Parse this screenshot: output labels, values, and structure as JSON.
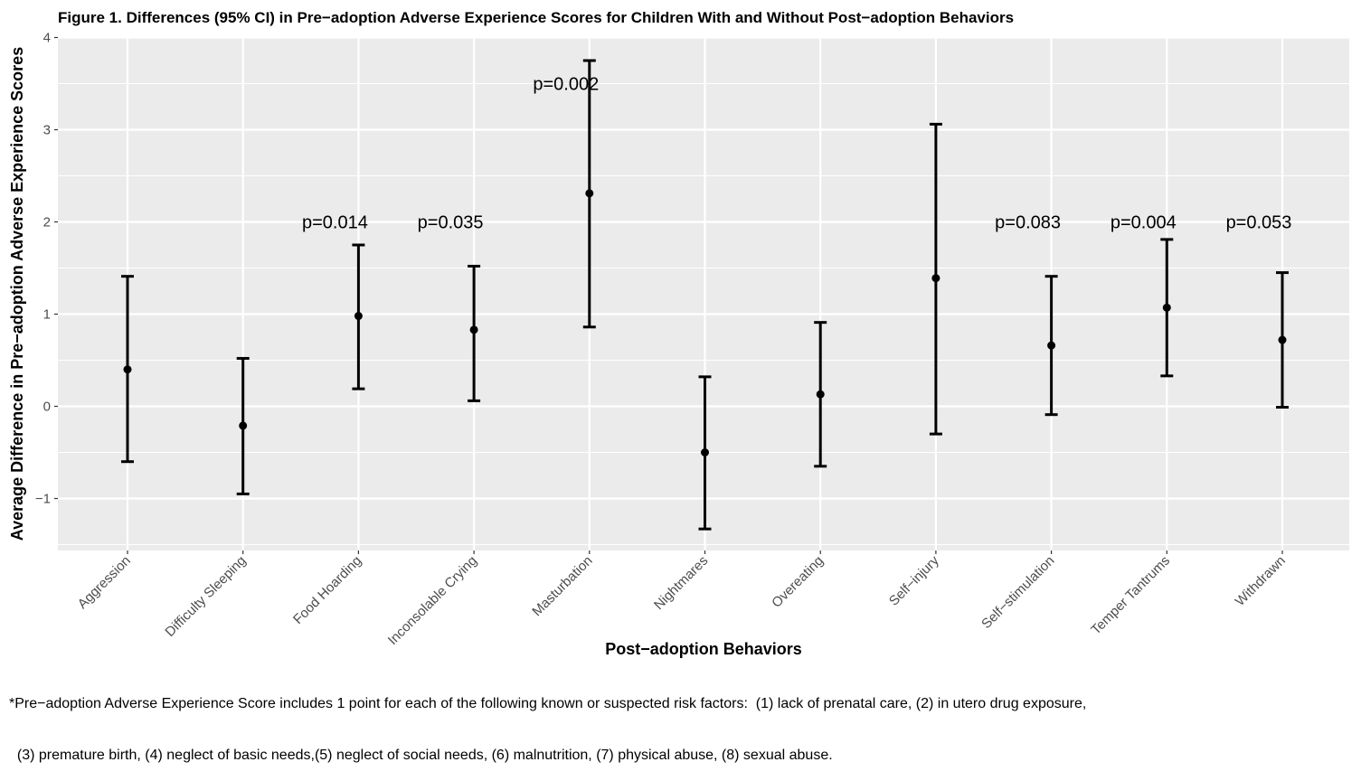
{
  "chart_data": {
    "type": "scatter",
    "title": "Figure 1. Differences (95% CI) in Pre−adoption Adverse Experience Scores for Children With and Without Post−adoption Behaviors",
    "xlabel": "Post−adoption Behaviors",
    "ylabel": "Average Difference in Pre−adoption Adverse Experience Scores",
    "ylim": [
      -1.55,
      4.05
    ],
    "y_ticks": [
      -1,
      0,
      1,
      2,
      3,
      4
    ],
    "y_tick_labels": [
      "−1",
      "0",
      "1",
      "2",
      "3",
      "4"
    ],
    "grid": true,
    "categories": [
      "Aggression",
      "Difficulty Sleeping",
      "Food Hoarding",
      "Inconsolable Crying",
      "Masturbation",
      "Nightmares",
      "Overeating",
      "Self−injury",
      "Self−stimulation",
      "Temper Tantrums",
      "Withdrawn"
    ],
    "estimate": [
      0.4,
      -0.21,
      0.98,
      0.83,
      2.31,
      -0.5,
      0.13,
      1.39,
      0.66,
      1.07,
      0.72
    ],
    "ci_lower": [
      -0.6,
      -0.95,
      0.19,
      0.06,
      0.86,
      -1.33,
      -0.65,
      -0.3,
      -0.09,
      0.33,
      -0.01
    ],
    "ci_upper": [
      1.41,
      0.52,
      1.75,
      1.52,
      3.75,
      0.32,
      0.91,
      3.06,
      1.41,
      1.81,
      1.45
    ],
    "annotations": [
      {
        "category": "Food Hoarding",
        "text": "p=0.014",
        "y": 2.0
      },
      {
        "category": "Inconsolable Crying",
        "text": "p=0.035",
        "y": 2.0
      },
      {
        "category": "Masturbation",
        "text": "p=0.002",
        "y": 3.5
      },
      {
        "category": "Self−stimulation",
        "text": "p=0.083",
        "y": 2.0
      },
      {
        "category": "Temper Tantrums",
        "text": "p=0.004",
        "y": 2.0
      },
      {
        "category": "Withdrawn",
        "text": "p=0.053",
        "y": 2.0
      }
    ],
    "colors": {
      "panel": "#EBEBEB",
      "grid": "#FFFFFF",
      "marks": "#000000",
      "tick_text": "#4D4D4D"
    }
  },
  "footnote": {
    "line1": "*Pre−adoption Adverse Experience Score includes 1 point for each of the following known or suspected risk factors:  (1) lack of prenatal care, (2) in utero drug exposure,",
    "line2": "  (3) premature birth, (4) neglect of basic needs,(5) neglect of social needs, (6) malnutrition, (7) physical abuse, (8) sexual abuse."
  }
}
